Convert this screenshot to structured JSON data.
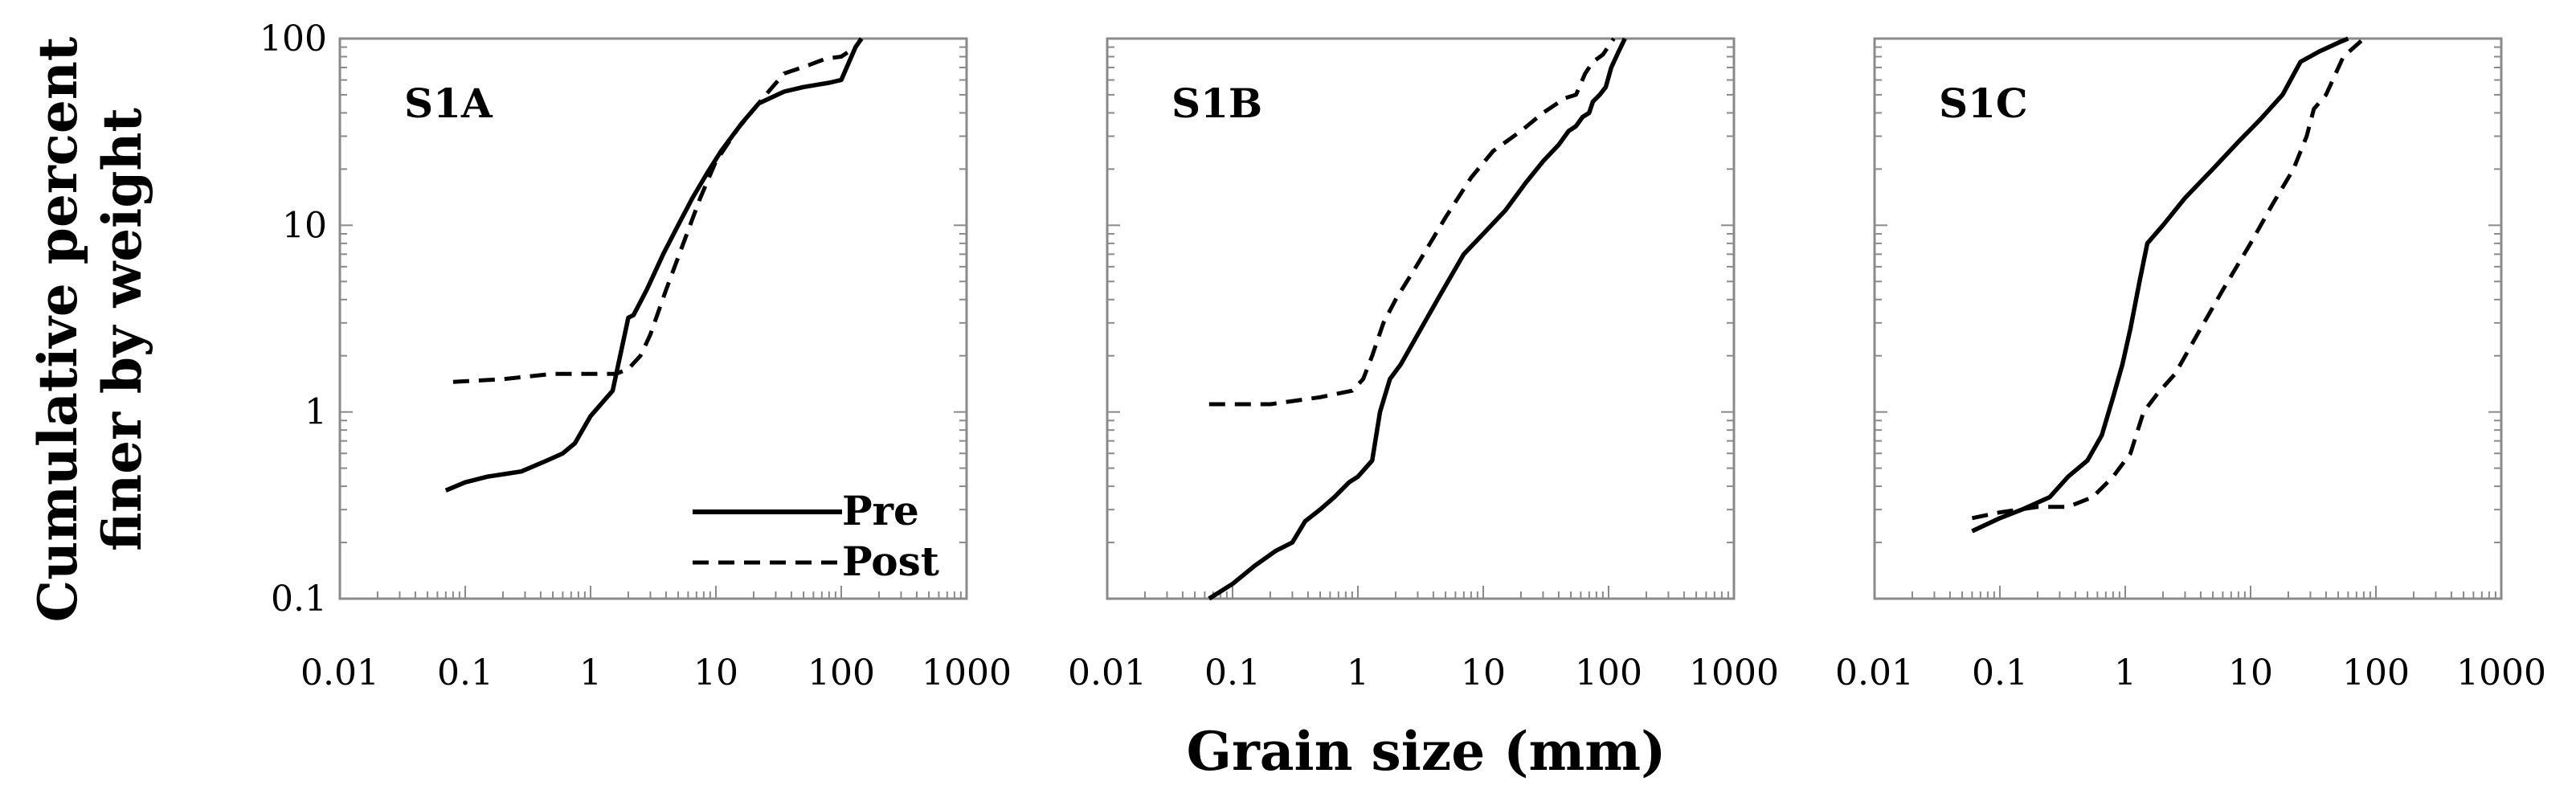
{
  "chart_data": {
    "type": "line",
    "ylabel_lines": [
      "Cumulative percent",
      "finer by weight"
    ],
    "xlabel": "Grain size (mm)",
    "xscale": "log",
    "yscale": "log",
    "xlim": [
      0.01,
      1000
    ],
    "ylim": [
      0.1,
      100
    ],
    "x_tick_labels": [
      "0.01",
      "0.1",
      "1",
      "10",
      "100",
      "1000"
    ],
    "y_tick_labels": [
      "100",
      "10",
      "1",
      "0.1"
    ],
    "legend": {
      "placement": "bottom-right of first panel",
      "pre_label": "Pre",
      "post_label": "Post"
    },
    "panels": [
      {
        "title": "S1A",
        "series": [
          {
            "name": "Pre",
            "style": "solid",
            "x": [
              0.07,
              0.1,
              0.15,
              0.28,
              0.45,
              0.6,
              0.75,
              1.0,
              1.5,
              2.0,
              2.2,
              2.8,
              3.8,
              5.0,
              6.5,
              8.5,
              11,
              16,
              22,
              35,
              50,
              80,
              100,
              130,
              145
            ],
            "y": [
              0.38,
              0.42,
              0.45,
              0.48,
              0.55,
              0.6,
              0.68,
              0.95,
              1.3,
              3.2,
              3.3,
              4.5,
              7,
              10,
              14,
              19,
              25,
              35,
              45,
              52,
              55,
              58,
              60,
              90,
              100
            ]
          },
          {
            "name": "Post",
            "style": "dashed",
            "x": [
              0.08,
              0.2,
              0.5,
              1.0,
              1.6,
              2.0,
              2.5,
              3.0,
              4.0,
              5.5,
              7.5,
              10,
              15,
              25,
              35,
              55,
              75,
              100,
              130
            ],
            "y": [
              1.45,
              1.5,
              1.6,
              1.6,
              1.6,
              1.7,
              2.0,
              2.6,
              4.5,
              8,
              14,
              22,
              33,
              50,
              65,
              72,
              78,
              80,
              90
            ]
          }
        ]
      },
      {
        "title": "S1B",
        "series": [
          {
            "name": "Pre",
            "style": "solid",
            "x": [
              0.065,
              0.1,
              0.15,
              0.22,
              0.3,
              0.38,
              0.5,
              0.65,
              0.85,
              1.0,
              1.3,
              1.5,
              1.8,
              2.2,
              3.0,
              4.5,
              7,
              10,
              15,
              22,
              30,
              40,
              48,
              55,
              62,
              70,
              75,
              85,
              95,
              105,
              120,
              135
            ],
            "y": [
              0.1,
              0.12,
              0.15,
              0.18,
              0.2,
              0.26,
              0.3,
              0.35,
              0.42,
              0.45,
              0.55,
              1.0,
              1.5,
              1.8,
              2.6,
              4.2,
              7,
              9,
              12,
              17,
              22,
              27,
              32,
              34,
              38,
              40,
              46,
              50,
              55,
              70,
              85,
              100
            ]
          },
          {
            "name": "Post",
            "style": "dashed",
            "x": [
              0.065,
              0.2,
              0.5,
              0.9,
              1.1,
              1.3,
              1.6,
              2.0,
              3.0,
              5.0,
              8,
              12,
              20,
              30,
              45,
              55,
              65,
              75,
              90,
              110
            ],
            "y": [
              1.1,
              1.1,
              1.2,
              1.3,
              1.5,
              2.0,
              3.0,
              4.0,
              6.2,
              11,
              18,
              25,
              32,
              40,
              48,
              50,
              65,
              75,
              82,
              100
            ]
          }
        ]
      },
      {
        "title": "S1C",
        "series": [
          {
            "name": "Pre",
            "style": "solid",
            "x": [
              0.06,
              0.1,
              0.15,
              0.25,
              0.35,
              0.5,
              0.65,
              0.8,
              0.95,
              1.1,
              1.3,
              1.5,
              2.0,
              3.0,
              5.0,
              8,
              12,
              18,
              25,
              35,
              50,
              60
            ],
            "y": [
              0.23,
              0.27,
              0.3,
              0.35,
              0.45,
              0.55,
              0.75,
              1.2,
              1.8,
              2.8,
              5.0,
              8.0,
              10,
              14,
              20,
              28,
              37,
              50,
              75,
              85,
              95,
              100
            ]
          },
          {
            "name": "Post",
            "style": "dashed",
            "x": [
              0.06,
              0.1,
              0.2,
              0.35,
              0.55,
              0.8,
              1.1,
              1.4,
              1.8,
              2.5,
              4.0,
              6.0,
              10,
              15,
              22,
              28,
              32,
              40,
              55,
              80
            ],
            "y": [
              0.27,
              0.29,
              0.31,
              0.31,
              0.35,
              0.45,
              0.6,
              1.0,
              1.25,
              1.6,
              2.8,
              4.5,
              8,
              13,
              20,
              30,
              42,
              50,
              80,
              100
            ]
          }
        ]
      }
    ]
  }
}
